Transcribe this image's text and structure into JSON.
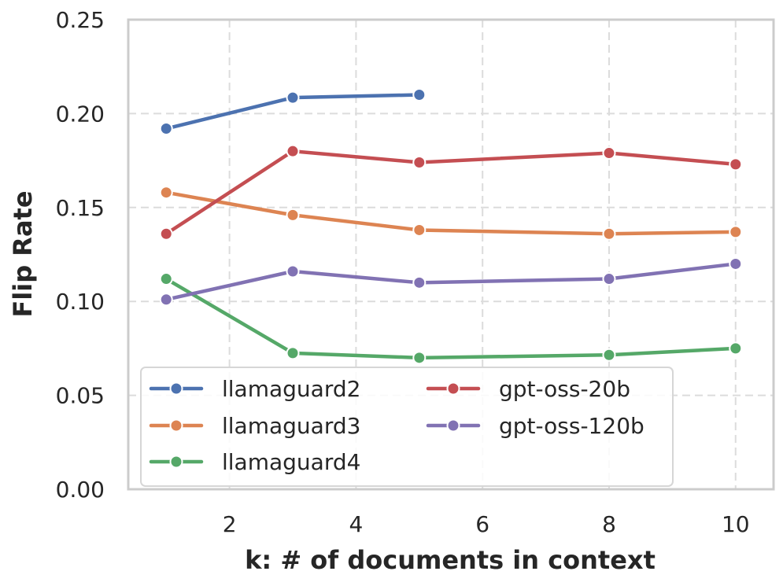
{
  "chart_data": {
    "type": "line",
    "title": "",
    "xlabel": "k: # of documents in context",
    "ylabel": "Flip Rate",
    "xlim": [
      0.4,
      10.6
    ],
    "ylim": [
      0.0,
      0.25
    ],
    "xticks": [
      2,
      4,
      6,
      8,
      10
    ],
    "xtick_labels": [
      "2",
      "4",
      "6",
      "8",
      "10"
    ],
    "yticks": [
      0.0,
      0.05,
      0.1,
      0.15,
      0.2,
      0.25
    ],
    "ytick_labels": [
      "0.00",
      "0.05",
      "0.10",
      "0.15",
      "0.20",
      "0.25"
    ],
    "grid": true,
    "legend_position": "lower-left",
    "series": [
      {
        "name": "llamaguard2",
        "color": "#4c72b0",
        "x": [
          1,
          3,
          5
        ],
        "y": [
          0.192,
          0.2085,
          0.21
        ]
      },
      {
        "name": "llamaguard3",
        "color": "#dd8452",
        "x": [
          1,
          3,
          5,
          8,
          10
        ],
        "y": [
          0.158,
          0.146,
          0.138,
          0.136,
          0.137
        ]
      },
      {
        "name": "llamaguard4",
        "color": "#55a868",
        "x": [
          1,
          3,
          5,
          8,
          10
        ],
        "y": [
          0.112,
          0.0725,
          0.07,
          0.0715,
          0.075
        ]
      },
      {
        "name": "gpt-oss-20b",
        "color": "#c44e52",
        "x": [
          1,
          3,
          5,
          8,
          10
        ],
        "y": [
          0.136,
          0.18,
          0.174,
          0.179,
          0.173
        ]
      },
      {
        "name": "gpt-oss-120b",
        "color": "#8172b3",
        "x": [
          1,
          3,
          5,
          8,
          10
        ],
        "y": [
          0.101,
          0.116,
          0.11,
          0.112,
          0.12
        ]
      }
    ]
  }
}
